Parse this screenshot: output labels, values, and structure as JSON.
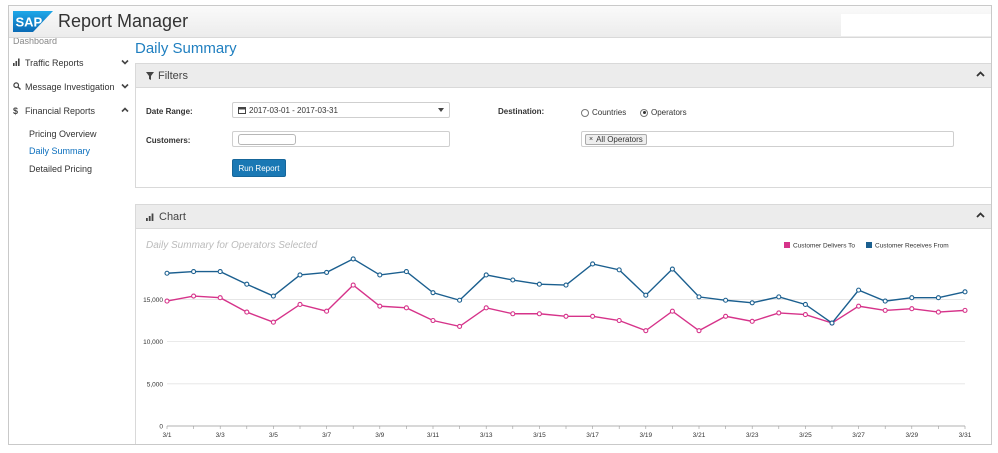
{
  "header": {
    "logo_text": "SAP",
    "app_title": "Report Manager"
  },
  "sidebar": {
    "cut_item": "Dashboard",
    "items": [
      {
        "label": "Traffic Reports",
        "icon": "bar-chart-icon"
      },
      {
        "label": "Message Investigation",
        "icon": "search-icon"
      },
      {
        "label": "Financial Reports",
        "icon": "dollar-icon"
      }
    ],
    "sub_items": [
      "Pricing Overview",
      "Daily Summary",
      "Detailed Pricing"
    ],
    "active_sub": "Daily Summary"
  },
  "page": {
    "title": "Daily Summary"
  },
  "filters": {
    "panel_title": "Filters",
    "date_range_label": "Date Range:",
    "date_range_value": "2017-03-01 - 2017-03-31",
    "customers_label": "Customers:",
    "destination_label": "Destination:",
    "destination_options": [
      "Countries",
      "Operators"
    ],
    "destination_selected": "Operators",
    "operator_tag": "All Operators",
    "run_button": "Run Report"
  },
  "chart_panel": {
    "panel_title": "Chart"
  },
  "colors": {
    "accent": "#1f7fc0",
    "button": "#1a78b4",
    "series_delivers": "#d6338a",
    "series_receives": "#1b5f8f"
  },
  "chart_data": {
    "type": "line",
    "title": "Daily Summary for Operators Selected",
    "x": [
      "3/1",
      "3/2",
      "3/3",
      "3/4",
      "3/5",
      "3/6",
      "3/7",
      "3/8",
      "3/9",
      "3/10",
      "3/11",
      "3/12",
      "3/13",
      "3/14",
      "3/15",
      "3/16",
      "3/17",
      "3/18",
      "3/19",
      "3/20",
      "3/21",
      "3/22",
      "3/23",
      "3/24",
      "3/25",
      "3/26",
      "3/27",
      "3/28",
      "3/29",
      "3/30",
      "3/31"
    ],
    "x_tick_labels": [
      "3/1",
      "3/3",
      "3/5",
      "3/7",
      "3/9",
      "3/11",
      "3/13",
      "3/15",
      "3/17",
      "3/19",
      "3/21",
      "3/23",
      "3/25",
      "3/27",
      "3/29",
      "3/31"
    ],
    "y_ticks": [
      0,
      5000,
      10000,
      15000
    ],
    "y_tick_labels": [
      "0",
      "5,000",
      "10,000",
      "15,000"
    ],
    "ylim": [
      0,
      20500
    ],
    "legend_position": "top-right",
    "series": [
      {
        "name": "Customer Delivers To",
        "color": "#d6338a",
        "values": [
          14800,
          15400,
          15200,
          13500,
          12300,
          14400,
          13600,
          16700,
          14200,
          14000,
          12500,
          11800,
          14000,
          13300,
          13300,
          13000,
          13000,
          12500,
          11300,
          13600,
          11300,
          13000,
          12400,
          13400,
          13200,
          12200,
          14200,
          13700,
          13900,
          13500,
          13700
        ]
      },
      {
        "name": "Customer Receives From",
        "color": "#1b5f8f",
        "values": [
          18100,
          18300,
          18300,
          16800,
          15400,
          17900,
          18200,
          19800,
          17900,
          18300,
          15800,
          14900,
          17900,
          17300,
          16800,
          16700,
          19200,
          18500,
          15500,
          18600,
          15300,
          14900,
          14600,
          15300,
          14400,
          12200,
          16100,
          14800,
          15200,
          15200,
          15900
        ]
      }
    ]
  }
}
